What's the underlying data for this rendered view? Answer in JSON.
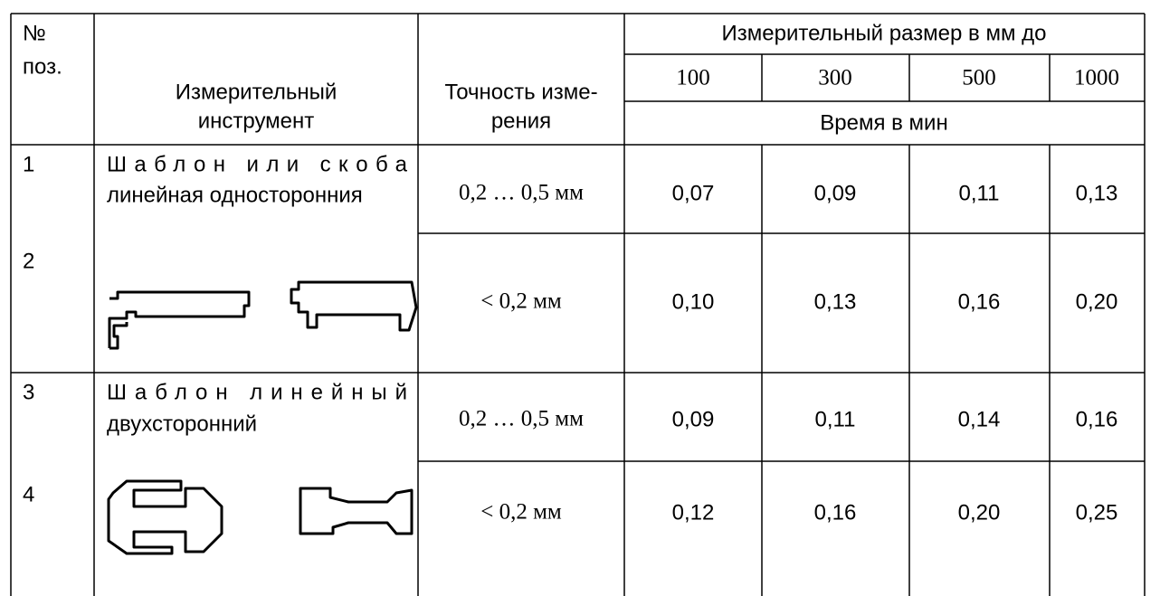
{
  "table": {
    "header": {
      "number": [
        "№",
        "поз."
      ],
      "instrument": [
        "Измерительный",
        "инструмент"
      ],
      "accuracy": [
        "Точность изме-",
        "рения"
      ],
      "size_group": "Измерительный размер в мм до",
      "sizes": [
        "100",
        "300",
        "500",
        "1000"
      ],
      "time_unit": "Время в мин"
    },
    "groups": [
      {
        "instrument": [
          "Шаблон или скоба",
          "линейная односторонния"
        ],
        "rows": [
          {
            "number": "1",
            "accuracy": "0,2 … 0,5 мм",
            "times": [
              "0,07",
              "0,09",
              "0,11",
              "0,13"
            ]
          },
          {
            "number": "2",
            "accuracy": "< 0,2 мм",
            "times": [
              "0,10",
              "0,13",
              "0,16",
              "0,20"
            ]
          }
        ]
      },
      {
        "instrument": [
          "Шаблон линейный",
          "двухсторонний"
        ],
        "rows": [
          {
            "number": "3",
            "accuracy": "0,2 … 0,5 мм",
            "times": [
              "0,09",
              "0,11",
              "0,14",
              "0,16"
            ]
          },
          {
            "number": "4",
            "accuracy": "< 0,2 мм",
            "times": [
              "0,12",
              "0,16",
              "0,20",
              "0,25"
            ]
          }
        ]
      }
    ]
  }
}
